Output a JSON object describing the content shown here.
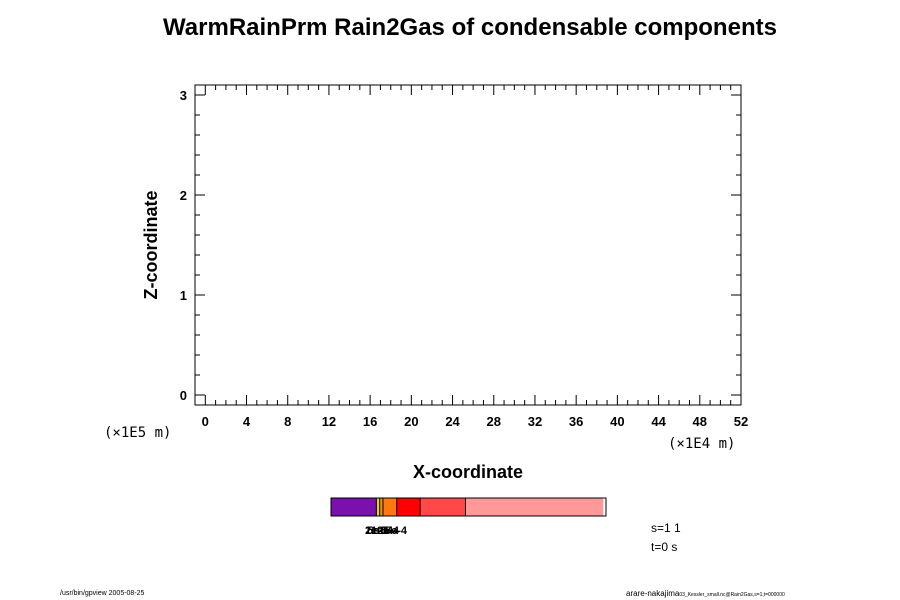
{
  "chart_data": {
    "type": "heatmap",
    "title": "WarmRainPrm Rain2Gas of condensable components",
    "xlabel": "X-coordinate",
    "ylabel": "Z-coordinate",
    "x_unit": "(×1E4 m)",
    "y_unit": "(×1E5 m)",
    "xlim": [
      -1,
      52
    ],
    "ylim": [
      -0.1,
      3.1
    ],
    "x_ticks": [
      0,
      4,
      8,
      12,
      16,
      20,
      24,
      28,
      32,
      36,
      40,
      44,
      48,
      52
    ],
    "y_ticks": [
      0,
      1,
      2,
      3
    ],
    "x_minor_step": 1,
    "y_minor_step": 0.2,
    "values": [],
    "colorbar": {
      "colors": [
        "#7a10ad",
        "#e8d020",
        "#f08c10",
        "#ff7810",
        "#ff0000",
        "#ff4848",
        "#ff9898"
      ],
      "fractions": [
        0.165,
        0.012,
        0.012,
        0.05,
        0.085,
        0.165,
        0.501
      ],
      "labels": [
        "1e-5",
        "2e-5",
        "5e-5",
        "1e-4",
        "2e-4",
        "5e-4"
      ]
    }
  },
  "info": {
    "subset": "s=1 1",
    "time": "t=0 s"
  },
  "footer": {
    "left": "/usr/bin/gpview 2005-08-25",
    "right_main": "arare-nakajima",
    "right_small": "03_Kessler_small.nc@Rain2Gas,s=1,t=000000"
  }
}
